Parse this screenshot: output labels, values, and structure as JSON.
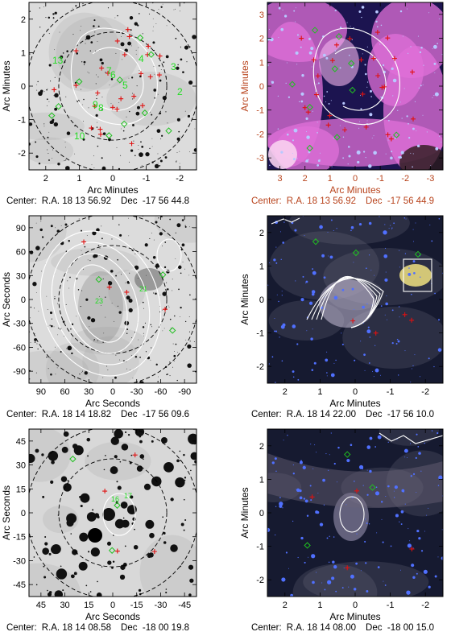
{
  "figure": {
    "panels": [
      {
        "id": "p1",
        "style": "gray",
        "text_color": "#000000",
        "xlabel": "Arc Minutes",
        "ylabel": "Arc Minutes",
        "x_ticks": [
          "2",
          "1",
          "0",
          "-1",
          "-2"
        ],
        "y_ticks": [
          "2",
          "1",
          "0",
          "-1",
          "-2"
        ],
        "center": {
          "label": "Center:",
          "ra": "R.A. 18 13 56.92",
          "dec": "Dec  -17 56 44.8"
        },
        "source_labels": [
          "13",
          "7",
          "6",
          "4",
          "3",
          "5",
          "2",
          "9",
          "8",
          "10"
        ]
      },
      {
        "id": "p2",
        "style": "color-pink",
        "text_color": "#b8431c",
        "xlabel": "Arc Minutes",
        "ylabel": "Arc Minutes",
        "x_ticks": [
          "3",
          "2",
          "1",
          "0",
          "-1",
          "-2",
          "-3"
        ],
        "y_ticks": [
          "3",
          "2",
          "1",
          "0",
          "-1",
          "-2",
          "-3"
        ],
        "center": {
          "label": "Center:",
          "ra": "R.A. 18 13 56.92",
          "dec": "Dec  -17 56 44.9"
        }
      },
      {
        "id": "p3",
        "style": "gray-light",
        "text_color": "#000000",
        "xlabel": "Arc Seconds",
        "ylabel": "Arc Seconds",
        "x_ticks": [
          "90",
          "60",
          "30",
          "0",
          "-30",
          "-60",
          "-90"
        ],
        "y_ticks": [
          "90",
          "60",
          "30",
          "0",
          "-30",
          "-60",
          "-90"
        ],
        "center": {
          "label": "Center:",
          "ra": "R.A. 18 14 18.82",
          "dec": "Dec  -17 56 09.6"
        },
        "source_labels": [
          "23",
          "21"
        ]
      },
      {
        "id": "p4",
        "style": "color-dark",
        "text_color": "#000000",
        "xlabel": "Arc Minutes",
        "ylabel": "Arc Minutes",
        "x_ticks": [
          "2",
          "1",
          "0",
          "-1",
          "-2"
        ],
        "y_ticks": [
          "2",
          "1",
          "0",
          "-1",
          "-2"
        ],
        "center": {
          "label": "Center:",
          "ra": "R.A. 18 14 22.00",
          "dec": "Dec  -17 56 10.0"
        }
      },
      {
        "id": "p5",
        "style": "gray-stars",
        "text_color": "#000000",
        "xlabel": "Arc Seconds",
        "ylabel": "Arc Seconds",
        "x_ticks": [
          "45",
          "30",
          "15",
          "0",
          "-15",
          "-30",
          "-45"
        ],
        "y_ticks": [
          "45",
          "30",
          "15",
          "0",
          "-15",
          "-30",
          "-45"
        ],
        "center": {
          "label": "Center:",
          "ra": "R.A. 18 14 08.58",
          "dec": "Dec  -18 00 19.8"
        },
        "source_labels": [
          "16",
          "17"
        ]
      },
      {
        "id": "p6",
        "style": "color-dark",
        "text_color": "#000000",
        "xlabel": "Arc Minutes",
        "ylabel": "Arc Minutes",
        "x_ticks": [
          "2",
          "1",
          "0",
          "-1",
          "-2"
        ],
        "y_ticks": [
          "2",
          "1",
          "0",
          "-1",
          "-2"
        ],
        "center": {
          "label": "Center:",
          "ra": "R.A. 18 14 08.00",
          "dec": "Dec  -18 00 15.0"
        }
      }
    ]
  }
}
